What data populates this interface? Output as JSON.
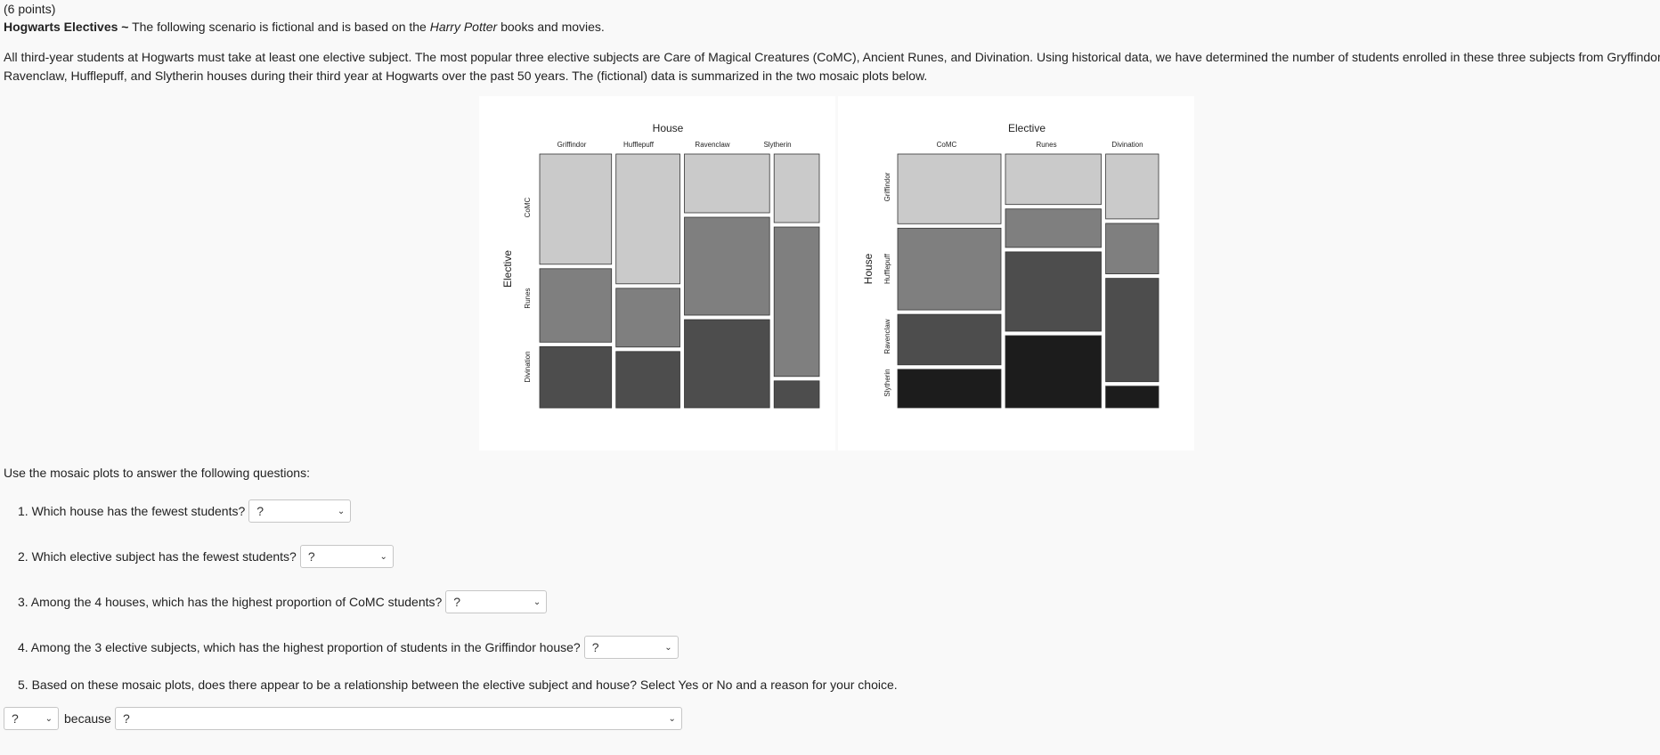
{
  "header": {
    "points": "(6 points)",
    "title_bold": "Hogwarts Electives ~",
    "title_pre": " The following scenario is fictional and is based on the ",
    "title_italic": "Harry Potter",
    "title_post": " books and movies."
  },
  "intro": {
    "line1": "All third-year students at Hogwarts must take at least one elective subject. The most popular three elective subjects are Care of Magical Creatures (CoMC), Ancient Runes, and Divination. Using historical data, we have determined the number of students enrolled in these three subjects from Gryffindor,",
    "line2": "Ravenclaw, Hufflepuff, and Slytherin houses during their third year at Hogwarts over the past 50 years. The (fictional) data is summarized in the two mosaic plots below."
  },
  "mosaic_left": {
    "top_title": "House",
    "side_title": "Elective",
    "columns": [
      "Griffindor",
      "Hufflepuff",
      "Ravenclaw",
      "Slytherin"
    ],
    "rows": [
      "CoMC",
      "Runes",
      "Divination"
    ],
    "colors": [
      "#cacaca",
      "#7f7f7f",
      "#4d4d4d"
    ]
  },
  "mosaic_right": {
    "top_title": "Elective",
    "side_title": "House",
    "columns": [
      "CoMC",
      "Runes",
      "Divination"
    ],
    "rows": [
      "Griffindor",
      "Hufflepuff",
      "Ravenclaw",
      "Slytherin"
    ],
    "colors": [
      "#cacaca",
      "#7f7f7f",
      "#4d4d4d",
      "#1c1c1c"
    ]
  },
  "chart_data": [
    {
      "type": "mosaic",
      "x_variable": "House",
      "y_variable": "Elective",
      "categories": [
        "Griffindor",
        "Hufflepuff",
        "Ravenclaw",
        "Slytherin"
      ],
      "column_share": [
        0.27,
        0.24,
        0.32,
        0.17
      ],
      "series": [
        {
          "name": "CoMC",
          "values": [
            0.45,
            0.53,
            0.24,
            0.28
          ]
        },
        {
          "name": "Runes",
          "values": [
            0.3,
            0.24,
            0.4,
            0.61
          ]
        },
        {
          "name": "Divination",
          "values": [
            0.25,
            0.23,
            0.36,
            0.11
          ]
        }
      ]
    },
    {
      "type": "mosaic",
      "x_variable": "Elective",
      "y_variable": "House",
      "categories": [
        "CoMC",
        "Runes",
        "Divination"
      ],
      "column_share": [
        0.41,
        0.38,
        0.21
      ],
      "series": [
        {
          "name": "Griffindor",
          "values": [
            0.29,
            0.21,
            0.27
          ]
        },
        {
          "name": "Hufflepuff",
          "values": [
            0.34,
            0.16,
            0.21
          ]
        },
        {
          "name": "Ravenclaw",
          "values": [
            0.21,
            0.33,
            0.43
          ]
        },
        {
          "name": "Slytherin",
          "values": [
            0.16,
            0.3,
            0.09
          ]
        }
      ]
    }
  ],
  "questions": {
    "lead": "Use the mosaic plots to answer the following questions:",
    "q1": "1. Which house has the fewest students?",
    "q2": "2. Which elective subject has the fewest students?",
    "q3": "3. Among the 4 houses, which has the highest proportion of CoMC students?",
    "q4": "4. Among the 3 elective subjects, which has the highest proportion of students in the Griffindor house?",
    "q5": "5. Based on these mosaic plots, does there appear to be a relationship between the elective subject and house? Select Yes or No and a reason for your choice.",
    "because": "because",
    "select_placeholder": "?"
  },
  "icons": {
    "dropdown": "chevron-down-icon"
  }
}
